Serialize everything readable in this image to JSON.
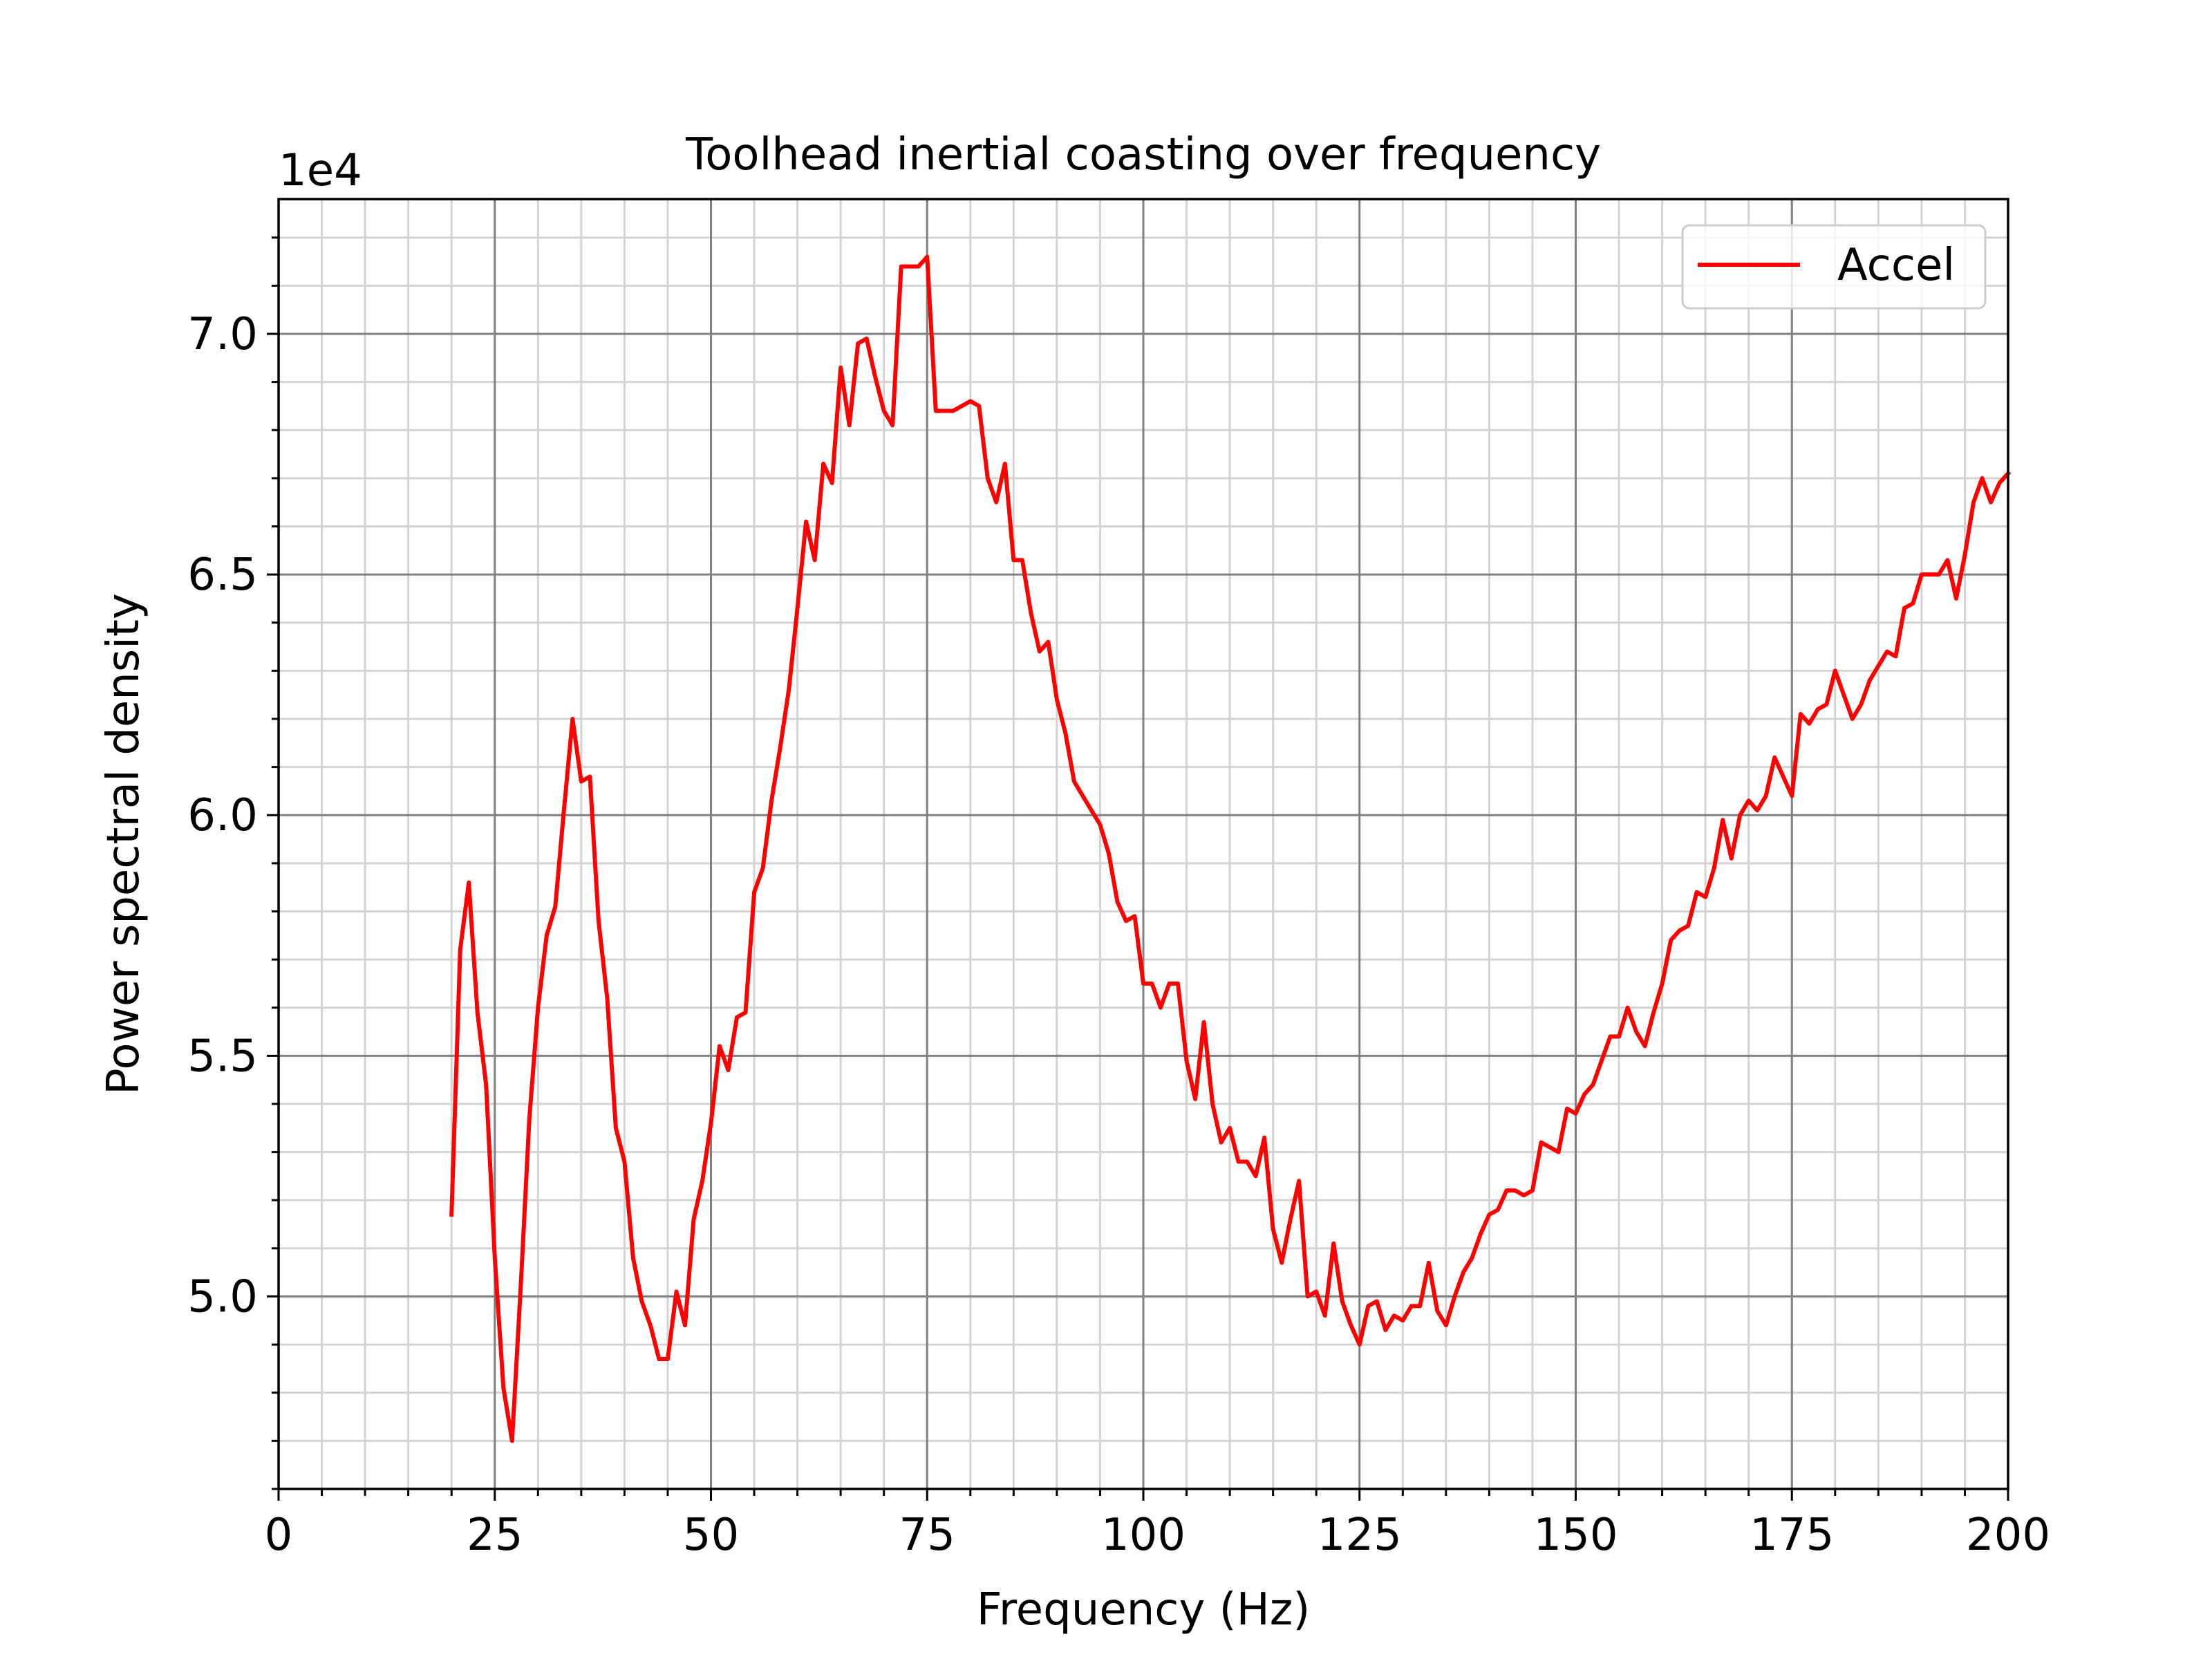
{
  "chart_data": {
    "type": "line",
    "title": "Toolhead inertial coasting over frequency",
    "xlabel": "Frequency (Hz)",
    "ylabel": "Power spectral density",
    "offset_text": "1e4",
    "xlim": [
      0,
      200
    ],
    "ylim": [
      4.6,
      7.28
    ],
    "x_ticks": [
      0,
      25,
      50,
      75,
      100,
      125,
      150,
      175,
      200
    ],
    "x_tick_labels": [
      "0",
      "25",
      "50",
      "75",
      "100",
      "125",
      "150",
      "175",
      "200"
    ],
    "y_ticks": [
      5.0,
      5.5,
      6.0,
      6.5,
      7.0
    ],
    "y_tick_labels": [
      "5.0",
      "5.5",
      "6.0",
      "6.5",
      "7.0"
    ],
    "grid": "major and minor",
    "legend_position": "upper right",
    "series": [
      {
        "name": "Accel",
        "color": "#ff0000",
        "x": [
          20,
          21,
          22,
          23,
          24,
          25,
          26,
          27,
          28,
          29,
          30,
          31,
          32,
          33,
          34,
          35,
          36,
          37,
          38,
          39,
          40,
          41,
          42,
          43,
          44,
          45,
          46,
          47,
          48,
          49,
          50,
          51,
          52,
          53,
          54,
          55,
          56,
          57,
          58,
          59,
          60,
          61,
          62,
          63,
          64,
          65,
          66,
          67,
          68,
          69,
          70,
          71,
          72,
          73,
          74,
          75,
          76,
          77,
          78,
          79,
          80,
          81,
          82,
          83,
          84,
          85,
          86,
          87,
          88,
          89,
          90,
          91,
          92,
          93,
          94,
          95,
          96,
          97,
          98,
          99,
          100,
          101,
          102,
          103,
          104,
          105,
          106,
          107,
          108,
          109,
          110,
          111,
          112,
          113,
          114,
          115,
          116,
          117,
          118,
          119,
          120,
          121,
          122,
          123,
          124,
          125,
          126,
          127,
          128,
          129,
          130,
          131,
          132,
          133,
          134,
          135,
          136,
          137,
          138,
          139,
          140,
          141,
          142,
          143,
          144,
          145,
          146,
          147,
          148,
          149,
          150,
          151,
          152,
          153,
          154,
          155,
          156,
          157,
          158,
          159,
          160,
          161,
          162,
          163,
          164,
          165,
          166,
          167,
          168,
          169,
          170,
          171,
          172,
          173,
          174,
          175,
          176,
          177,
          178,
          179,
          180,
          181,
          182,
          183,
          184,
          185,
          186,
          187,
          188,
          189,
          190,
          191,
          192,
          193,
          194,
          195,
          196,
          197,
          198,
          199,
          200
        ],
        "y": [
          5.17,
          5.72,
          5.86,
          5.59,
          5.44,
          5.08,
          4.81,
          4.7,
          5.02,
          5.37,
          5.6,
          5.75,
          5.81,
          6.01,
          6.2,
          6.07,
          6.08,
          5.78,
          5.62,
          5.35,
          5.28,
          5.08,
          4.99,
          4.94,
          4.87,
          4.87,
          5.01,
          4.94,
          5.16,
          5.24,
          5.36,
          5.52,
          5.47,
          5.58,
          5.59,
          5.84,
          5.89,
          6.03,
          6.14,
          6.26,
          6.43,
          6.61,
          6.53,
          6.73,
          6.69,
          6.93,
          6.81,
          6.98,
          6.99,
          6.91,
          6.84,
          6.81,
          7.14,
          7.14,
          7.14,
          7.16,
          6.84,
          6.84,
          6.84,
          6.85,
          6.86,
          6.85,
          6.7,
          6.65,
          6.73,
          6.53,
          6.53,
          6.42,
          6.34,
          6.36,
          6.24,
          6.17,
          6.07,
          6.04,
          6.01,
          5.98,
          5.92,
          5.82,
          5.78,
          5.79,
          5.65,
          5.65,
          5.6,
          5.65,
          5.65,
          5.49,
          5.41,
          5.57,
          5.4,
          5.32,
          5.35,
          5.28,
          5.28,
          5.25,
          5.33,
          5.14,
          5.07,
          5.16,
          5.24,
          5.0,
          5.01,
          4.96,
          5.11,
          4.99,
          4.94,
          4.9,
          4.98,
          4.99,
          4.93,
          4.96,
          4.95,
          4.98,
          4.98,
          5.07,
          4.97,
          4.94,
          5.0,
          5.05,
          5.08,
          5.13,
          5.17,
          5.18,
          5.22,
          5.22,
          5.21,
          5.22,
          5.32,
          5.31,
          5.3,
          5.39,
          5.38,
          5.42,
          5.44,
          5.49,
          5.54,
          5.54,
          5.6,
          5.55,
          5.52,
          5.59,
          5.65,
          5.74,
          5.76,
          5.77,
          5.84,
          5.83,
          5.89,
          5.99,
          5.91,
          6.0,
          6.03,
          6.01,
          6.04,
          6.12,
          6.08,
          6.04,
          6.21,
          6.19,
          6.22,
          6.23,
          6.3,
          6.25,
          6.2,
          6.23,
          6.28,
          6.31,
          6.34,
          6.33,
          6.43,
          6.44,
          6.5,
          6.5,
          6.5,
          6.53,
          6.45,
          6.54,
          6.65,
          6.7,
          6.65,
          6.69,
          6.71
        ]
      }
    ]
  }
}
